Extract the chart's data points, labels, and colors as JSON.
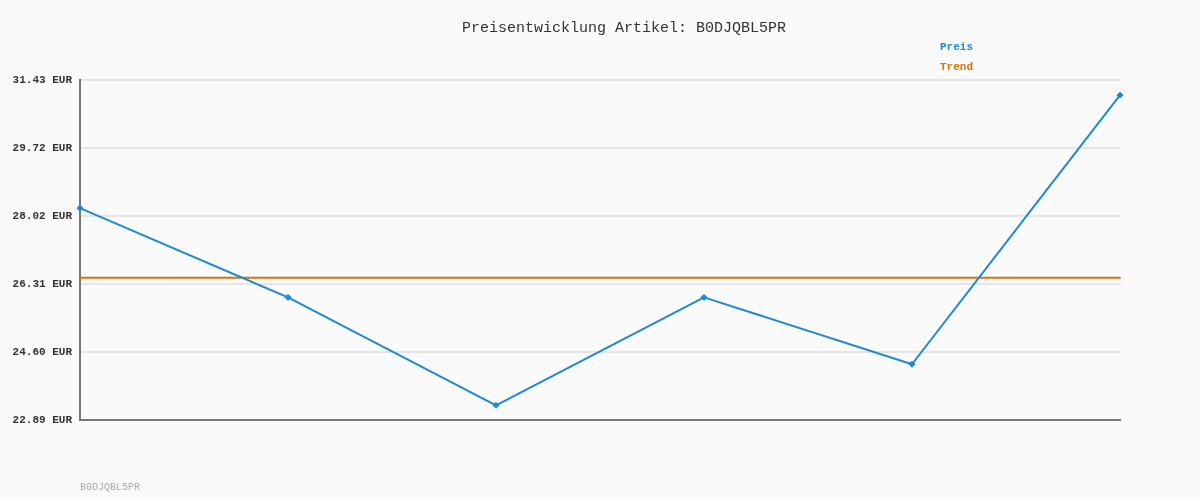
{
  "chart_data": {
    "type": "line",
    "title": "Preisentwicklung Artikel: B0DJQBL5PR",
    "categories": [
      null,
      null,
      null,
      null,
      null,
      null
    ],
    "series": [
      {
        "name": "Preis",
        "color": "#1f88d2",
        "values": [
          28.21,
          25.97,
          23.26,
          25.97,
          24.29,
          31.05
        ]
      },
      {
        "name": "Trend",
        "color": "#d97400",
        "marker": "none",
        "values": [
          26.46,
          26.46,
          26.46,
          26.46,
          26.46,
          26.46
        ]
      }
    ],
    "ylim": [
      22.89,
      31.43
    ],
    "yticks": [
      {
        "value": 22.89,
        "label": "22.89 EUR"
      },
      {
        "value": 24.6,
        "label": "24.60 EUR"
      },
      {
        "value": 26.31,
        "label": "26.31 EUR"
      },
      {
        "value": 28.02,
        "label": "28.02 EUR"
      },
      {
        "value": 29.72,
        "label": "29.72 EUR"
      },
      {
        "value": 31.43,
        "label": "31.43 EUR"
      }
    ],
    "grid": "y",
    "legend": "top right",
    "marker": "diamond",
    "line_style": "solid",
    "annotations": [
      "B0DJQBL5PR"
    ]
  }
}
